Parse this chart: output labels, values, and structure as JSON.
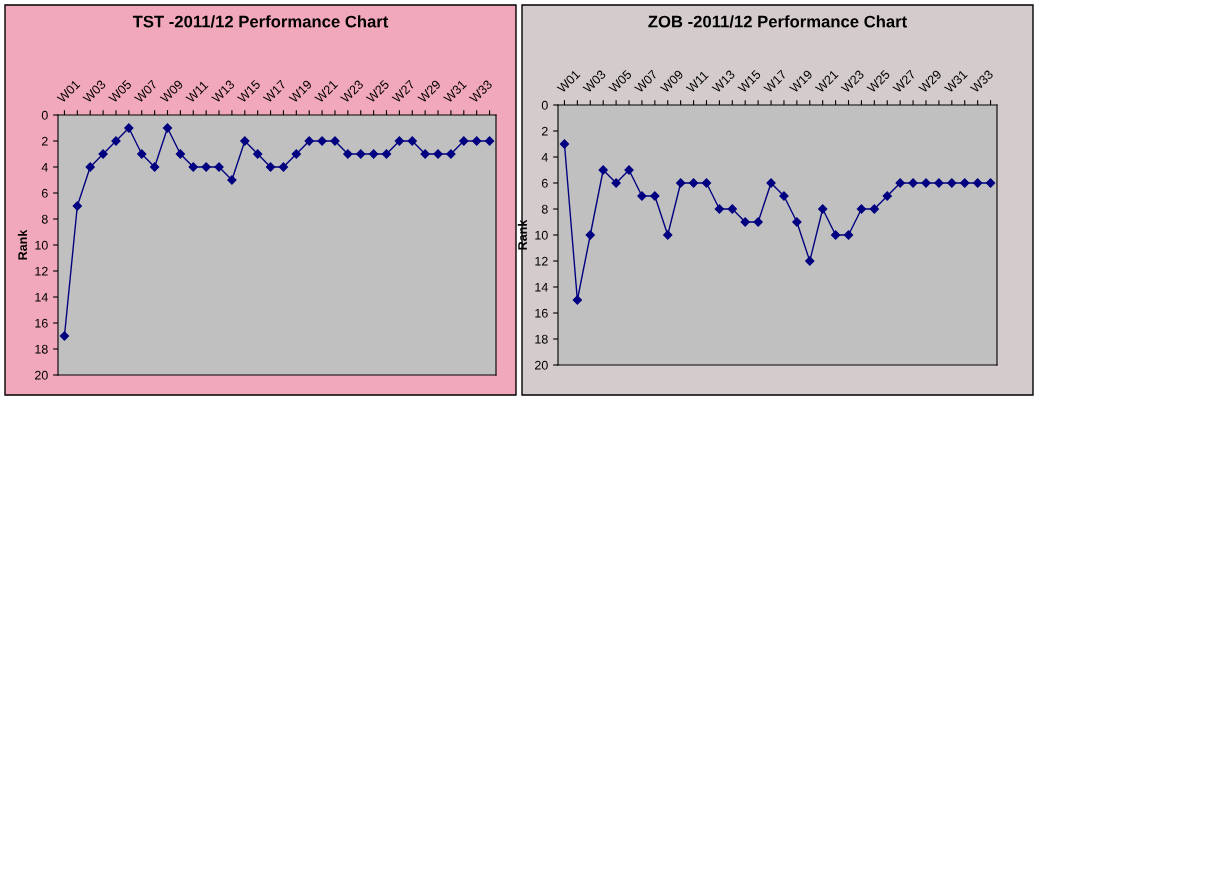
{
  "chart_data": [
    {
      "type": "line",
      "title": "TST -2011/12 Performance Chart",
      "ylabel": "Rank",
      "categories": [
        "W01",
        null,
        "W03",
        null,
        "W05",
        null,
        "W07",
        null,
        "W09",
        null,
        "W11",
        null,
        "W13",
        null,
        "W15",
        null,
        "W17",
        null,
        "W19",
        null,
        "W21",
        null,
        "W23",
        null,
        "W25",
        null,
        "W27",
        null,
        "W29",
        null,
        "W31",
        null,
        "W33",
        null
      ],
      "series": [
        {
          "color": "#000080",
          "values": [
            17,
            7,
            4,
            3,
            2,
            1,
            3,
            4,
            1,
            3,
            4,
            4,
            4,
            5,
            2,
            3,
            4,
            4,
            3,
            2,
            2,
            2,
            3,
            3,
            3,
            3,
            2,
            2,
            3,
            3,
            3,
            2,
            2,
            2
          ]
        }
      ],
      "ylim": [
        20,
        0
      ],
      "yticks": [
        0,
        2,
        4,
        6,
        8,
        10,
        12,
        14,
        16,
        18,
        20
      ],
      "grid": false,
      "legend": false,
      "marker": "diamond",
      "line_style": "solid"
    },
    {
      "type": "line",
      "title": "ZOB -2011/12 Performance Chart",
      "ylabel": "Rank",
      "categories": [
        "W01",
        null,
        "W03",
        null,
        "W05",
        null,
        "W07",
        null,
        "W09",
        null,
        "W11",
        null,
        "W13",
        null,
        "W15",
        null,
        "W17",
        null,
        "W19",
        null,
        "W21",
        null,
        "W23",
        null,
        "W25",
        null,
        "W27",
        null,
        "W29",
        null,
        "W31",
        null,
        "W33",
        null
      ],
      "series": [
        {
          "color": "#000080",
          "values": [
            3,
            15,
            10,
            5,
            6,
            5,
            7,
            7,
            10,
            6,
            6,
            6,
            8,
            8,
            9,
            9,
            6,
            7,
            9,
            12,
            8,
            10,
            10,
            8,
            8,
            7,
            6,
            6,
            6,
            6,
            6,
            6,
            6,
            6
          ]
        }
      ],
      "ylim": [
        20,
        0
      ],
      "yticks": [
        0,
        2,
        4,
        6,
        8,
        10,
        12,
        14,
        16,
        18,
        20
      ],
      "grid": false,
      "legend": false,
      "marker": "diamond",
      "line_style": "solid"
    }
  ]
}
